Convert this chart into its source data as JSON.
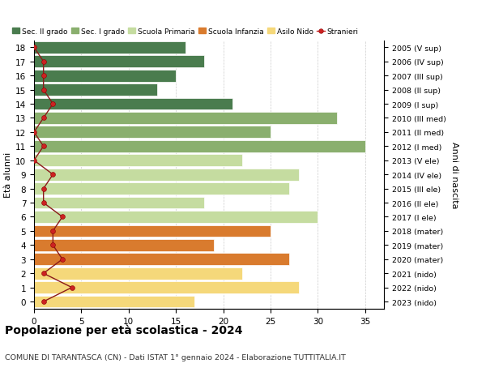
{
  "ages": [
    18,
    17,
    16,
    15,
    14,
    13,
    12,
    11,
    10,
    9,
    8,
    7,
    6,
    5,
    4,
    3,
    2,
    1,
    0
  ],
  "years": [
    "2005 (V sup)",
    "2006 (IV sup)",
    "2007 (III sup)",
    "2008 (II sup)",
    "2009 (I sup)",
    "2010 (III med)",
    "2011 (II med)",
    "2012 (I med)",
    "2013 (V ele)",
    "2014 (IV ele)",
    "2015 (III ele)",
    "2016 (II ele)",
    "2017 (I ele)",
    "2018 (mater)",
    "2019 (mater)",
    "2020 (mater)",
    "2021 (nido)",
    "2022 (nido)",
    "2023 (nido)"
  ],
  "bar_values": [
    16,
    18,
    15,
    13,
    21,
    32,
    25,
    35,
    22,
    28,
    27,
    18,
    30,
    25,
    19,
    27,
    22,
    28,
    17
  ],
  "bar_colors": [
    "#4a7c4e",
    "#4a7c4e",
    "#4a7c4e",
    "#4a7c4e",
    "#4a7c4e",
    "#8aaf6e",
    "#8aaf6e",
    "#8aaf6e",
    "#c5dca0",
    "#c5dca0",
    "#c5dca0",
    "#c5dca0",
    "#c5dca0",
    "#d97b2e",
    "#d97b2e",
    "#d97b2e",
    "#f5d87a",
    "#f5d87a",
    "#f5d87a"
  ],
  "stranieri_values": [
    0,
    1,
    1,
    1,
    2,
    1,
    0,
    1,
    0,
    2,
    1,
    1,
    3,
    2,
    2,
    3,
    1,
    4,
    1
  ],
  "legend_labels": [
    "Sec. II grado",
    "Sec. I grado",
    "Scuola Primaria",
    "Scuola Infanzia",
    "Asilo Nido",
    "Stranieri"
  ],
  "legend_colors": [
    "#4a7c4e",
    "#8aaf6e",
    "#c5dca0",
    "#d97b2e",
    "#f5d87a",
    "#cc2222"
  ],
  "title": "Popolazione per età scolastica - 2024",
  "subtitle": "COMUNE DI TARANTASCA (CN) - Dati ISTAT 1° gennaio 2024 - Elaborazione TUTTITALIA.IT",
  "ylabel_left": "Età alunni",
  "ylabel_right": "Anni di nascita",
  "xlim": [
    0,
    37
  ],
  "xticks": [
    0,
    5,
    10,
    15,
    20,
    25,
    30,
    35
  ],
  "bg_color": "#ffffff",
  "grid_color": "#cccccc"
}
